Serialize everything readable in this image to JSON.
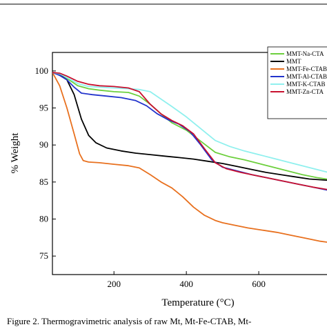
{
  "chart_data": {
    "type": "line",
    "xlabel": "Temperature (°C)",
    "ylabel": "% Weight",
    "xlim": [
      30,
      800
    ],
    "ylim": [
      72.5,
      102.5
    ],
    "x_ticks": [
      200,
      400,
      600
    ],
    "y_ticks": [
      75,
      80,
      85,
      90,
      95,
      100
    ],
    "grid": false,
    "legend_position": "top-right",
    "caption": "Figure 2. Thermogravimetric analysis of raw Mt, Mt-Fe-CTAB, Mt-",
    "series": [
      {
        "name": "MMT-Na-CTA",
        "color": "#6ccf3c",
        "x": [
          30,
          50,
          70,
          100,
          130,
          160,
          200,
          240,
          270,
          300,
          330,
          360,
          400,
          440,
          480,
          520,
          560,
          600,
          640,
          680,
          720,
          760,
          800
        ],
        "y": [
          99.8,
          99.6,
          99.0,
          98.0,
          97.6,
          97.4,
          97.2,
          97.1,
          96.6,
          95.5,
          94.2,
          93.0,
          92.0,
          90.5,
          89.0,
          88.4,
          88.0,
          87.5,
          87.0,
          86.5,
          86.0,
          85.6,
          85.3
        ]
      },
      {
        "name": "MMT",
        "color": "#000000",
        "x": [
          30,
          50,
          70,
          90,
          110,
          130,
          150,
          180,
          220,
          260,
          300,
          340,
          380,
          420,
          460,
          500,
          540,
          580,
          620,
          660,
          700,
          740,
          800
        ],
        "y": [
          99.8,
          99.5,
          98.8,
          96.8,
          93.5,
          91.3,
          90.3,
          89.6,
          89.2,
          88.9,
          88.7,
          88.5,
          88.3,
          88.1,
          87.8,
          87.5,
          87.1,
          86.7,
          86.3,
          86.0,
          85.7,
          85.4,
          85.2
        ]
      },
      {
        "name": "MMT-Fe-CTAB",
        "color": "#e8701e",
        "x": [
          30,
          50,
          70,
          90,
          105,
          115,
          130,
          160,
          200,
          240,
          270,
          300,
          330,
          360,
          390,
          420,
          450,
          480,
          500,
          530,
          570,
          610,
          650,
          690,
          730,
          770,
          800
        ],
        "y": [
          99.8,
          98.0,
          95.0,
          91.5,
          88.8,
          87.9,
          87.7,
          87.6,
          87.4,
          87.2,
          86.9,
          86.0,
          85.0,
          84.2,
          83.0,
          81.6,
          80.5,
          79.8,
          79.5,
          79.2,
          78.8,
          78.5,
          78.2,
          77.8,
          77.4,
          77.0,
          76.8
        ]
      },
      {
        "name": "MMT-Al-CTAB",
        "color": "#2233cc",
        "x": [
          30,
          50,
          70,
          90,
          110,
          140,
          180,
          220,
          260,
          290,
          320,
          350,
          380,
          410,
          440,
          470,
          500,
          540,
          580,
          620,
          660,
          700,
          740,
          800
        ],
        "y": [
          99.8,
          99.4,
          98.8,
          97.8,
          97.0,
          96.8,
          96.6,
          96.4,
          96.0,
          95.3,
          94.2,
          93.4,
          92.8,
          91.8,
          90.0,
          88.0,
          87.0,
          86.5,
          86.0,
          85.6,
          85.2,
          84.8,
          84.4,
          83.8
        ]
      },
      {
        "name": "MMT-K-CTAB",
        "color": "#8ff0ee",
        "x": [
          30,
          50,
          70,
          100,
          130,
          160,
          200,
          240,
          270,
          300,
          330,
          360,
          400,
          440,
          480,
          520,
          560,
          600,
          640,
          680,
          720,
          760,
          800
        ],
        "y": [
          99.8,
          99.6,
          99.1,
          98.3,
          97.9,
          97.8,
          97.7,
          97.6,
          97.5,
          97.2,
          96.2,
          95.2,
          93.8,
          92.2,
          90.6,
          89.8,
          89.2,
          88.7,
          88.2,
          87.7,
          87.2,
          86.7,
          86.2
        ]
      },
      {
        "name": "MMT-Zn-CTA",
        "color": "#c8102e",
        "x": [
          30,
          50,
          70,
          100,
          130,
          160,
          200,
          240,
          270,
          300,
          330,
          360,
          390,
          420,
          450,
          480,
          510,
          550,
          590,
          630,
          670,
          710,
          750,
          800
        ],
        "y": [
          99.8,
          99.7,
          99.3,
          98.6,
          98.2,
          98.0,
          97.9,
          97.7,
          97.2,
          95.5,
          94.2,
          93.3,
          92.6,
          91.5,
          89.5,
          87.6,
          86.8,
          86.3,
          85.9,
          85.5,
          85.1,
          84.7,
          84.3,
          83.9
        ]
      }
    ]
  }
}
